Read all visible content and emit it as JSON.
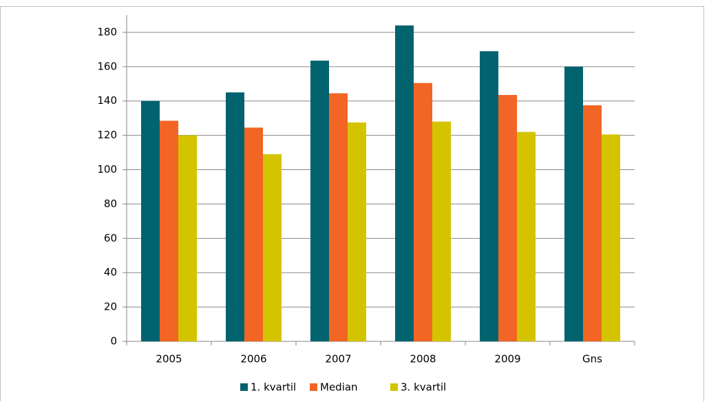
{
  "chart_data": {
    "type": "bar",
    "categories": [
      "2005",
      "2006",
      "2007",
      "2008",
      "2009",
      "Gns"
    ],
    "series": [
      {
        "name": "1. kvartil",
        "color": "#00636e",
        "values": [
          140,
          145,
          163.5,
          184,
          169,
          160
        ]
      },
      {
        "name": "Median",
        "color": "#f26524",
        "values": [
          128.5,
          124.5,
          144.5,
          150.5,
          143.5,
          137.5
        ]
      },
      {
        "name": "3. kvartil",
        "color": "#d4c400",
        "values": [
          120,
          109,
          127.5,
          128,
          122,
          120.5
        ]
      }
    ],
    "ylim": [
      0,
      190
    ],
    "yticks": [
      0,
      20,
      40,
      60,
      80,
      100,
      120,
      140,
      160,
      180
    ],
    "grid": true,
    "legend": "bottom"
  }
}
